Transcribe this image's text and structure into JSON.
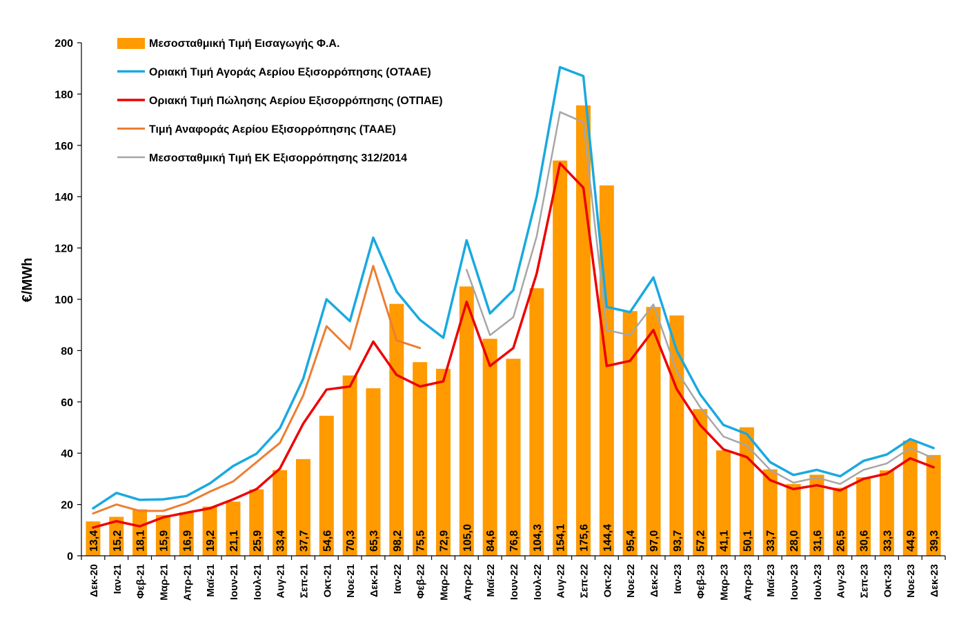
{
  "chart_data": {
    "type": "bar",
    "title": "",
    "xlabel": "",
    "ylabel": "€/MWh",
    "ylim": [
      0,
      200
    ],
    "yticks": [
      0,
      20,
      40,
      60,
      80,
      100,
      120,
      140,
      160,
      180,
      200
    ],
    "grid": false,
    "legend_position": "top-left",
    "categories": [
      "Δεκ-20",
      "Ιαν-21",
      "Φεβ-21",
      "Μαρ-21",
      "Απρ-21",
      "Μαϊ-21",
      "Ιουν-21",
      "Ιουλ-21",
      "Αυγ-21",
      "Σεπ-21",
      "Οκτ-21",
      "Νοε-21",
      "Δεκ-21",
      "Ιαν-22",
      "Φεβ-22",
      "Μαρ-22",
      "Απρ-22",
      "Μαϊ-22",
      "Ιουν-22",
      "Ιουλ-22",
      "Αυγ-22",
      "Σεπ-22",
      "Οκτ-22",
      "Νοε-22",
      "Δεκ-22",
      "Ιαν-23",
      "Φεβ-23",
      "Μαρ-23",
      "Απρ-23",
      "Μαϊ-23",
      "Ιουν-23",
      "Ιουλ-23",
      "Αυγ-23",
      "Σεπ-23",
      "Οκτ-23",
      "Νοε-23",
      "Δεκ-23"
    ],
    "bar_series": {
      "name": "Μεσοσταθμική Τιμή Εισαγωγής Φ.Α.",
      "color": "#ff9a00",
      "values": [
        13.4,
        15.2,
        18.1,
        15.9,
        16.9,
        19.2,
        21.1,
        25.9,
        33.4,
        37.7,
        54.6,
        70.3,
        65.3,
        98.2,
        75.5,
        72.9,
        105.0,
        84.6,
        76.8,
        104.3,
        154.1,
        175.6,
        144.4,
        95.4,
        97.0,
        93.7,
        57.2,
        41.1,
        50.1,
        33.7,
        28.0,
        31.6,
        26.5,
        30.6,
        33.3,
        44.9,
        39.3
      ],
      "labels": [
        "13,4",
        "15,2",
        "18,1",
        "15,9",
        "16,9",
        "19,2",
        "21,1",
        "25,9",
        "33,4",
        "37,7",
        "54,6",
        "70,3",
        "65,3",
        "98,2",
        "75,5",
        "72,9",
        "105,0",
        "84,6",
        "76,8",
        "104,3",
        "154,1",
        "175,6",
        "144,4",
        "95,4",
        "97,0",
        "93,7",
        "57,2",
        "41,1",
        "50,1",
        "33,7",
        "28,0",
        "31,6",
        "26,5",
        "30,6",
        "33,3",
        "44,9",
        "39,3"
      ]
    },
    "line_series": [
      {
        "name": "Οριακή Τιμή Αγοράς Αερίου Εξισορρόπησης  (ΟΤΑΑΕ)",
        "color": "#19a9e0",
        "width": 3.5,
        "values": [
          18.5,
          24.5,
          21.8,
          22.0,
          23.3,
          28.2,
          35.0,
          39.8,
          49.7,
          69.0,
          100.0,
          91.5,
          124.0,
          103.0,
          92.0,
          85.0,
          123.0,
          94.5,
          103.5,
          140.0,
          190.5,
          187.0,
          97.0,
          95.0,
          108.5,
          80.0,
          63.0,
          51.0,
          47.5,
          36.5,
          31.5,
          33.5,
          31.0,
          37.0,
          39.5,
          45.5,
          42.0
        ]
      },
      {
        "name": "Οριακή Τιμή Πώλησης Αερίου Εξισορρόπησης (ΟΤΠΑΕ)",
        "color": "#ee0000",
        "width": 3.5,
        "values": [
          11.0,
          13.5,
          11.5,
          15.0,
          16.8,
          18.5,
          22.0,
          26.0,
          34.0,
          51.5,
          64.8,
          66.0,
          83.5,
          70.5,
          66.0,
          68.0,
          99.0,
          74.0,
          81.0,
          110.0,
          153.0,
          143.5,
          74.0,
          76.0,
          88.0,
          65.0,
          51.0,
          41.5,
          38.5,
          29.5,
          26.0,
          27.5,
          25.5,
          30.0,
          32.0,
          38.0,
          34.5
        ]
      },
      {
        "name": "Τιμή Αναφοράς Αερίου Εξισορρόπησης (ΤΑΑΕ)",
        "color": "#ed7d31",
        "width": 3,
        "values": [
          16.5,
          20.0,
          17.5,
          17.5,
          20.5,
          25.0,
          29.0,
          36.5,
          44.0,
          62.5,
          89.5,
          80.5,
          113.0,
          84.0,
          81.0
        ]
      },
      {
        "name": "Μεσοσταθμική Τιμή ΕΚ Εξισορρόπησης 312/2014",
        "color": "#a6a6a6",
        "width": 2.5,
        "values": [
          null,
          null,
          null,
          null,
          null,
          null,
          null,
          null,
          null,
          null,
          null,
          null,
          null,
          null,
          null,
          null,
          111.5,
          86.0,
          93.0,
          124.5,
          173.0,
          169.0,
          88.0,
          86.0,
          98.0,
          72.0,
          58.0,
          46.5,
          43.0,
          33.5,
          28.5,
          30.5,
          28.0,
          33.5,
          36.0,
          42.0,
          38.0
        ]
      }
    ]
  }
}
